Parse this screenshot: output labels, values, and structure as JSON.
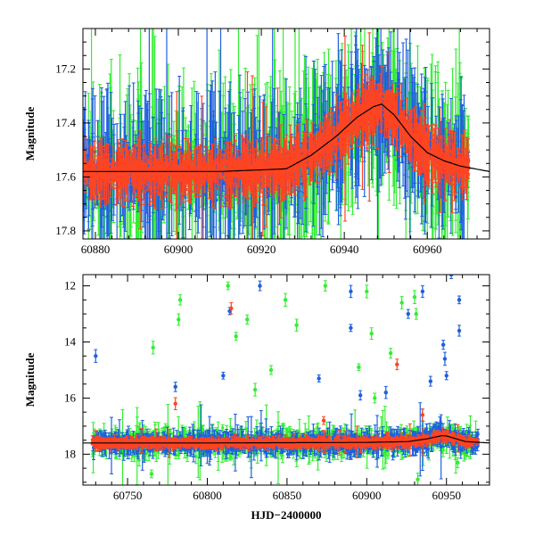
{
  "chart_data": [
    {
      "type": "scatter",
      "panel": "top",
      "title": "",
      "xlabel": "",
      "ylabel": "Magnitude",
      "xlim": [
        60877,
        60975
      ],
      "ylim": [
        17.83,
        17.05
      ],
      "y_inverted": true,
      "xticks": [
        60880,
        60900,
        60920,
        60940,
        60960
      ],
      "yticks": [
        17.2,
        17.4,
        17.6,
        17.8
      ],
      "grid": false,
      "legend": "none",
      "series_colors": {
        "green": "#33ee33",
        "blue": "#1f5fe0",
        "red": "#ff4422",
        "model": "#000000"
      },
      "model_curve": {
        "x": [
          60877,
          60890,
          60910,
          60926,
          60932,
          60938,
          60943,
          60947,
          60949,
          60952,
          60956,
          60960,
          60964,
          60968,
          60975
        ],
        "y": [
          17.58,
          17.58,
          17.58,
          17.57,
          17.52,
          17.45,
          17.38,
          17.34,
          17.33,
          17.37,
          17.45,
          17.51,
          17.54,
          17.56,
          17.58
        ]
      },
      "observation_range": [
        60877,
        60970
      ]
    },
    {
      "type": "scatter",
      "panel": "bottom",
      "title": "",
      "xlabel": "HJD−2400000",
      "ylabel": "Magnitude",
      "xlim": [
        60722,
        60977
      ],
      "ylim": [
        19.1,
        11.6
      ],
      "y_inverted": true,
      "xticks": [
        60750,
        60800,
        60850,
        60900,
        60950
      ],
      "yticks": [
        12,
        14,
        16,
        18
      ],
      "grid": false,
      "legend": "none",
      "series_colors": {
        "green": "#33ee33",
        "blue": "#1f5fe0",
        "red": "#ff4422",
        "model": "#000000"
      },
      "model_curve": {
        "x": [
          60722,
          60800,
          60900,
          60926,
          60938,
          60947,
          60950,
          60956,
          60962,
          60977
        ],
        "y": [
          17.6,
          17.6,
          17.58,
          17.55,
          17.45,
          17.34,
          17.35,
          17.45,
          17.55,
          17.6
        ]
      },
      "observation_range": [
        60728,
        60970
      ],
      "outliers": {
        "blue": [
          [
            60730,
            14.5
          ],
          [
            60814,
            12.9
          ],
          [
            60833,
            12.0
          ],
          [
            60890,
            12.2
          ],
          [
            60890,
            13.5
          ],
          [
            60935,
            12.2
          ],
          [
            60953,
            11.6
          ],
          [
            60926,
            13.0
          ],
          [
            60958,
            12.5
          ],
          [
            60958,
            13.6
          ],
          [
            60948,
            14.1
          ],
          [
            60949,
            14.6
          ],
          [
            60912,
            15.8
          ],
          [
            60896,
            15.9
          ],
          [
            60940,
            15.4
          ],
          [
            60950,
            15.2
          ],
          [
            60810,
            15.2
          ],
          [
            60870,
            15.3
          ],
          [
            60780,
            15.6
          ]
        ],
        "green": [
          [
            60783,
            12.5
          ],
          [
            60813,
            12.0
          ],
          [
            60849,
            12.5
          ],
          [
            60874,
            12.0
          ],
          [
            60900,
            12.2
          ],
          [
            60922,
            12.6
          ],
          [
            60782,
            13.2
          ],
          [
            60825,
            13.2
          ],
          [
            60856,
            13.4
          ],
          [
            60903,
            13.7
          ],
          [
            60931,
            13.0
          ],
          [
            60930,
            12.4
          ],
          [
            60766,
            14.2
          ],
          [
            60818,
            13.8
          ],
          [
            60840,
            15.0
          ],
          [
            60895,
            14.9
          ],
          [
            60915,
            14.4
          ],
          [
            60830,
            15.7
          ],
          [
            60905,
            16.0
          ],
          [
            60765,
            18.7
          ],
          [
            60932,
            18.9
          ],
          [
            60957,
            18.3
          ]
        ],
        "red": [
          [
            60815,
            12.8
          ],
          [
            60919,
            14.8
          ],
          [
            60780,
            16.2
          ],
          [
            60873,
            16.8
          ],
          [
            60935,
            16.6
          ]
        ]
      }
    }
  ]
}
